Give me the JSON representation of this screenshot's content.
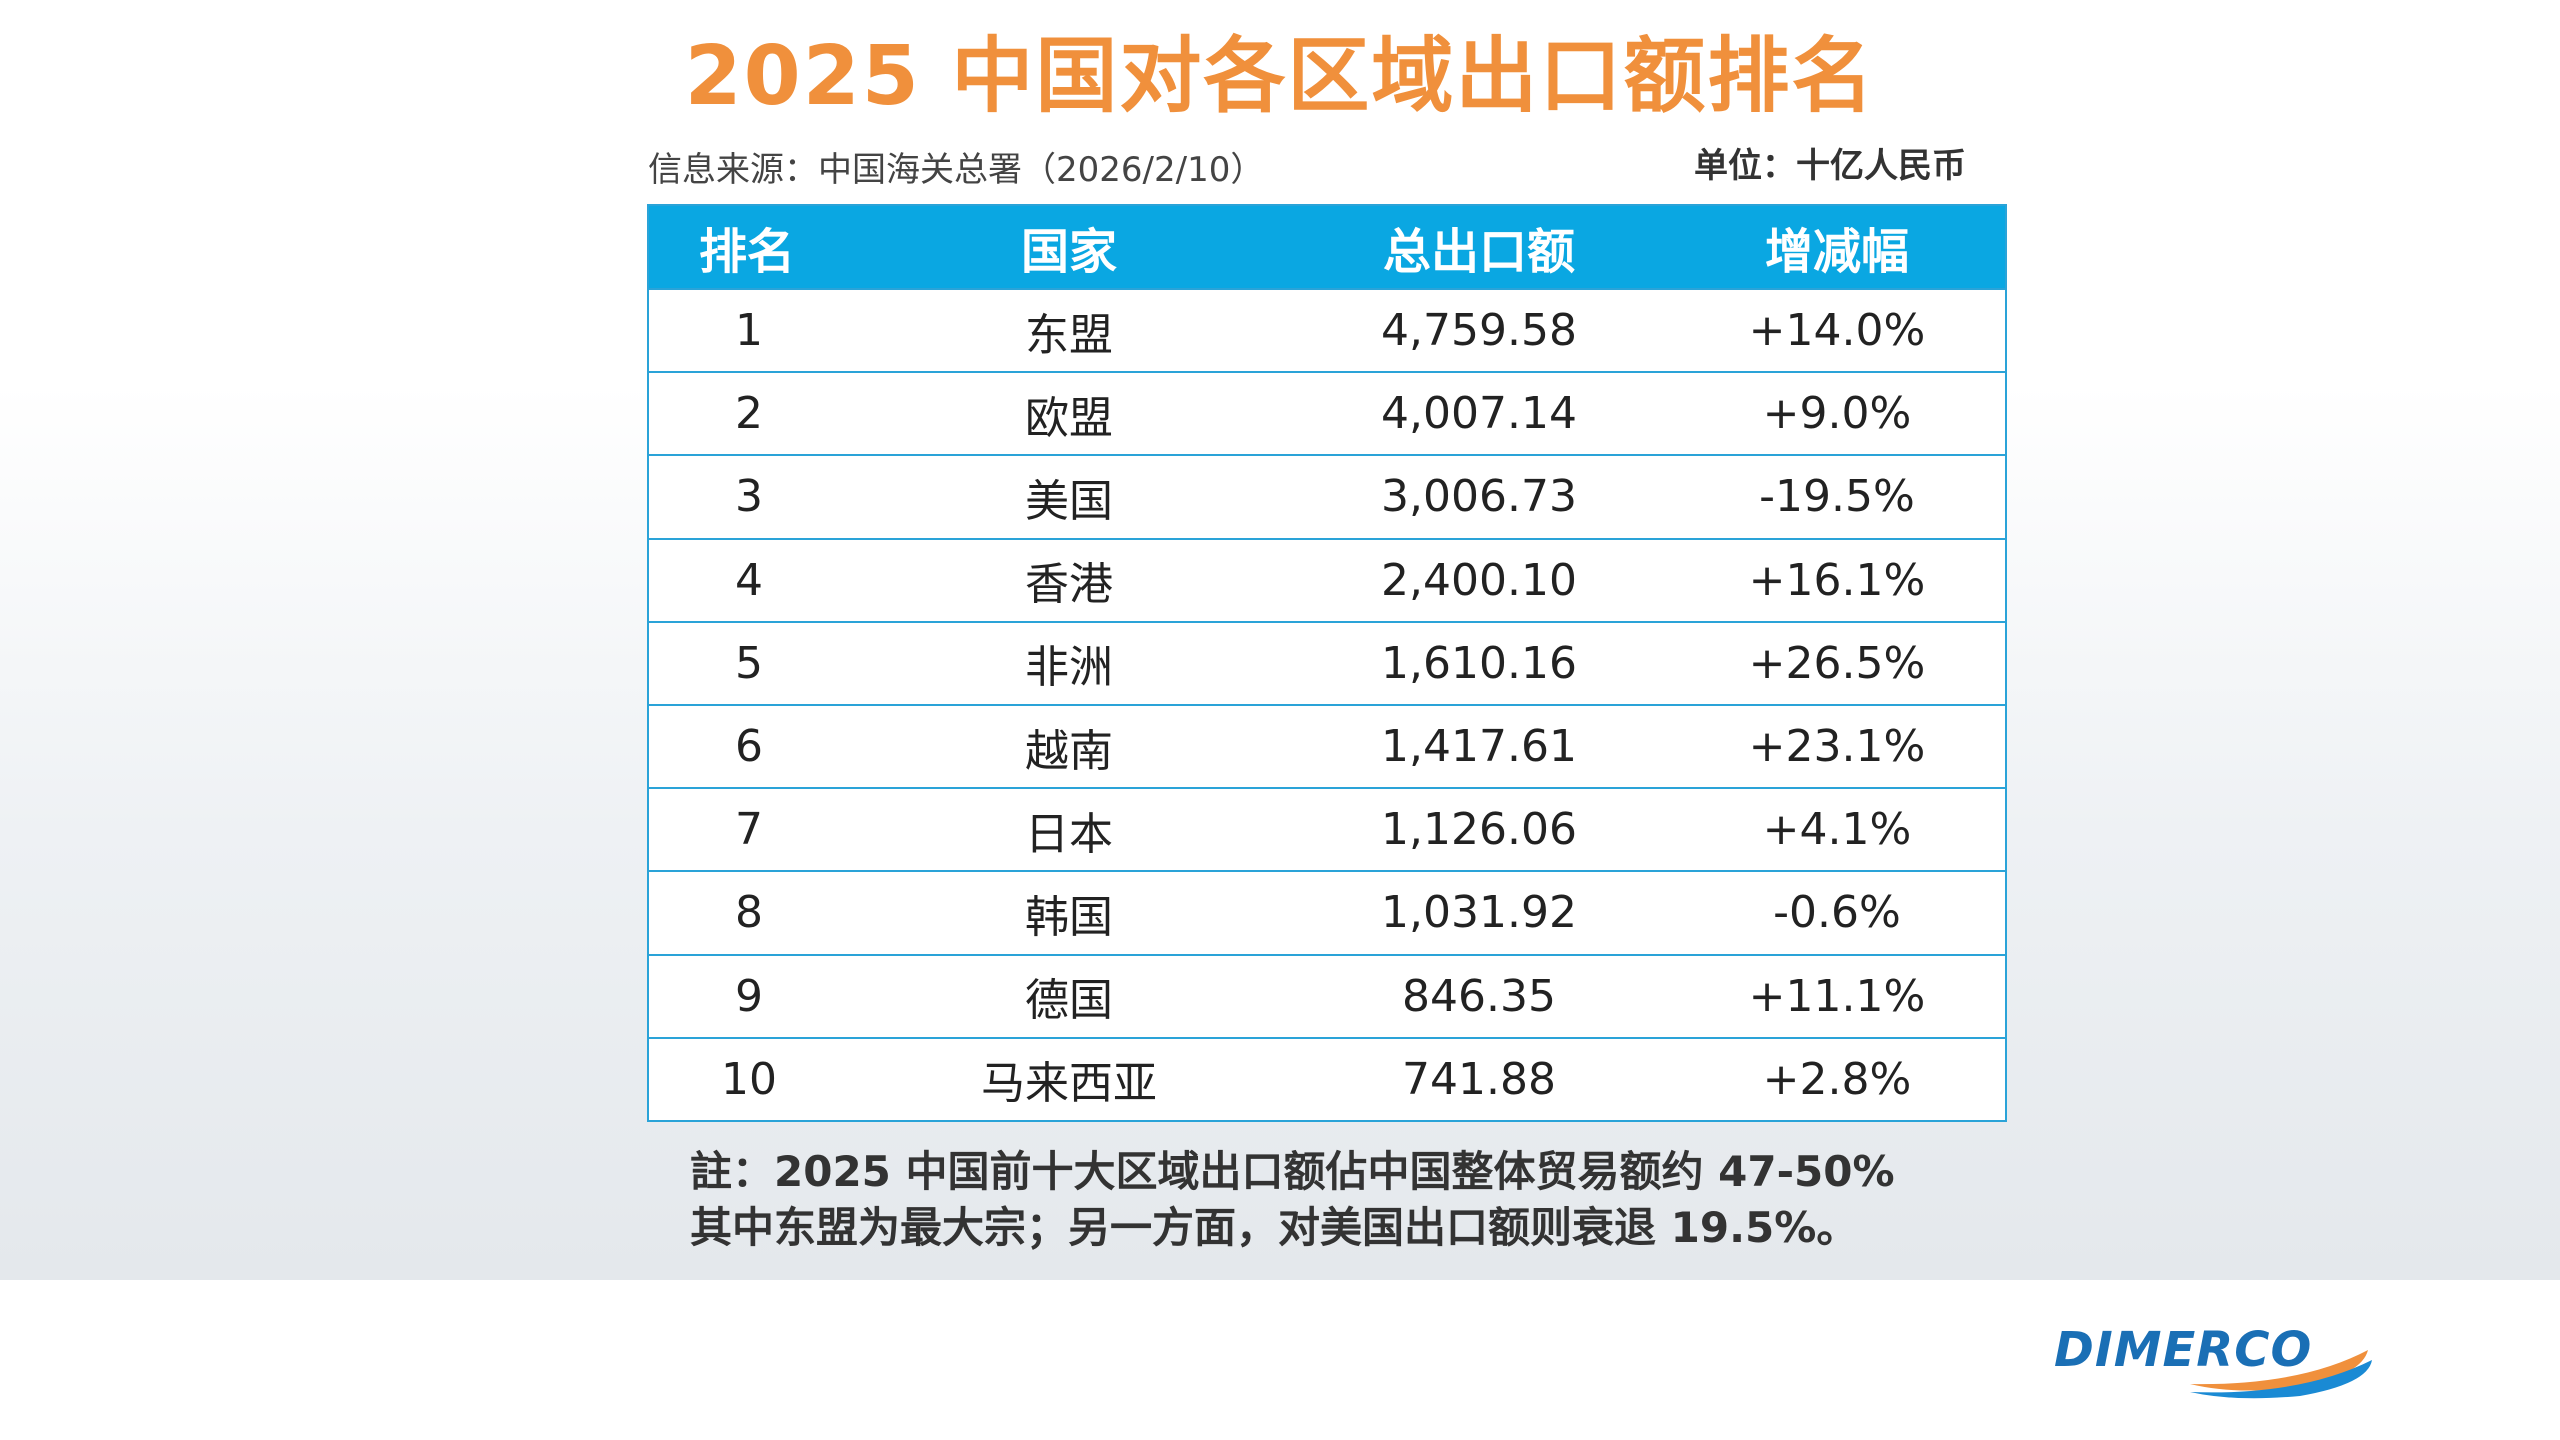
{
  "title": "2025 中国对各区域出口额排名",
  "source": "信息来源：中国海关总署（2026/2/10）",
  "unit": "单位：十亿人民币",
  "table": {
    "headers": [
      "排名",
      "国家",
      "总出口额",
      "增减幅"
    ],
    "rows": [
      {
        "rank": "1",
        "region": "东盟",
        "amount": "4,759.58",
        "change": "+14.0%"
      },
      {
        "rank": "2",
        "region": "欧盟",
        "amount": "4,007.14",
        "change": "+9.0%"
      },
      {
        "rank": "3",
        "region": "美国",
        "amount": "3,006.73",
        "change": "-19.5%"
      },
      {
        "rank": "4",
        "region": "香港",
        "amount": "2,400.10",
        "change": "+16.1%"
      },
      {
        "rank": "5",
        "region": "非洲",
        "amount": "1,610.16",
        "change": "+26.5%"
      },
      {
        "rank": "6",
        "region": "越南",
        "amount": "1,417.61",
        "change": "+23.1%"
      },
      {
        "rank": "7",
        "region": "日本",
        "amount": "1,126.06",
        "change": "+4.1%"
      },
      {
        "rank": "8",
        "region": "韩国",
        "amount": "1,031.92",
        "change": "-0.6%"
      },
      {
        "rank": "9",
        "region": "德国",
        "amount": "846.35",
        "change": "+11.1%"
      },
      {
        "rank": "10",
        "region": "马来西亚",
        "amount": "741.88",
        "change": "+2.8%"
      }
    ]
  },
  "note": {
    "line1": "註：2025 中国前十大区域出口额佔中国整体贸易额约 47-50%",
    "line2": "其中东盟为最大宗；另一方面，对美国出口额则衰退 19.5%。"
  },
  "logo": {
    "text": "DIMERCO",
    "colors": {
      "text": "#1a6fb5",
      "swoosh_orange": "#f0903c",
      "swoosh_blue": "#1a8ad4"
    }
  },
  "colors": {
    "title": "#f0903c",
    "header_bg": "#0aa7e2",
    "border": "#2aa3d8"
  }
}
